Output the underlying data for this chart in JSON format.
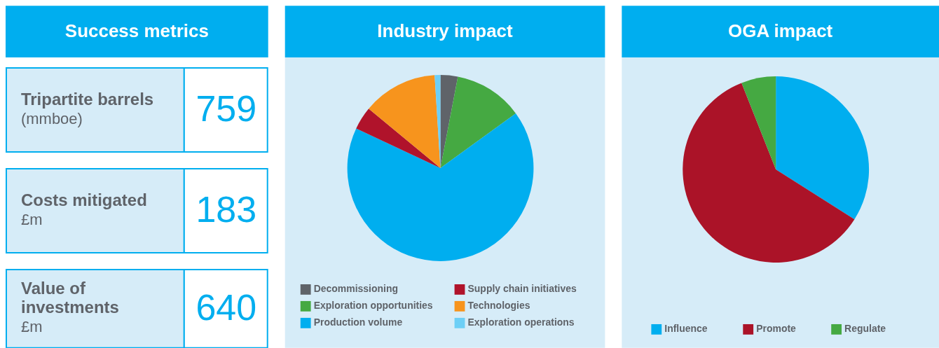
{
  "chart_data": [
    {
      "type": "other",
      "title": "Success metrics",
      "categories": [
        "Tripartite barrels\n(mmboe)",
        "Costs mitigated\n£m",
        "Value of investments\n£m"
      ],
      "values": [
        759,
        183,
        640
      ],
      "data_labels": true,
      "color": "#00aeef"
    },
    {
      "type": "pie",
      "title": "Industry impact",
      "categories": [
        "Decommissioning",
        "Exploration opportunities",
        "Production volume",
        "Supply chain initiatives",
        "Technologies",
        "Exploration operations"
      ],
      "values": [
        3,
        12,
        67,
        4,
        13,
        1
      ],
      "colors": [
        "#5f6369",
        "#45a942",
        "#00aeef",
        "#b0132b",
        "#f7941d",
        "#6dcff6"
      ],
      "legend": "bottom"
    },
    {
      "type": "pie",
      "title": "OGA impact",
      "categories": [
        "Influence",
        "Promote",
        "Regulate"
      ],
      "values": [
        34,
        60,
        6
      ],
      "colors": [
        "#00aeef",
        "#ab1328",
        "#45a942"
      ],
      "legend": "bottom"
    }
  ]
}
